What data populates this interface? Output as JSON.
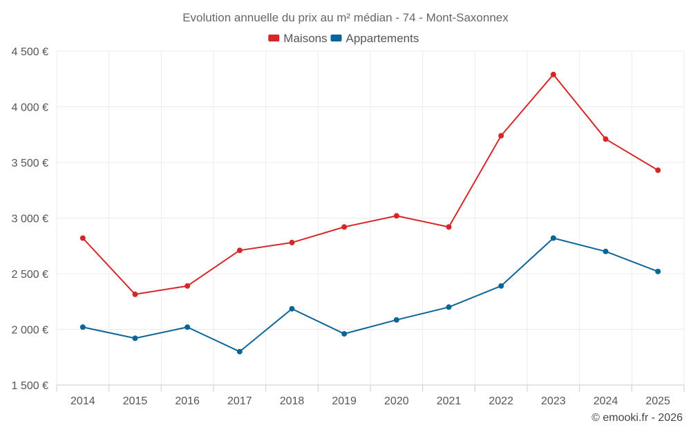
{
  "chart_data": {
    "type": "line",
    "title": "Evolution annuelle du prix au m² médian - 74 - Mont-Saxonnex",
    "categories": [
      "2014",
      "2015",
      "2016",
      "2017",
      "2018",
      "2019",
      "2020",
      "2021",
      "2022",
      "2023",
      "2024",
      "2025"
    ],
    "series": [
      {
        "name": "Maisons",
        "color": "#d62728",
        "values": [
          2820,
          2315,
          2390,
          2710,
          2780,
          2920,
          3020,
          2920,
          3740,
          4290,
          3710,
          3430
        ]
      },
      {
        "name": "Appartements",
        "color": "#0b6496",
        "values": [
          2020,
          1920,
          2020,
          1800,
          2185,
          1960,
          2085,
          2200,
          2390,
          2820,
          2700,
          2520
        ]
      }
    ],
    "yticks": [
      1500,
      2000,
      2500,
      3000,
      3500,
      4000,
      4500
    ],
    "ytick_labels": [
      "1 500 €",
      "2 000 €",
      "2 500 €",
      "3 000 €",
      "3 500 €",
      "4 000 €",
      "4 500 €"
    ],
    "ylim": [
      1500,
      4500
    ],
    "xlabel": "",
    "ylabel": "",
    "grid": true,
    "legend_position": "top-center"
  },
  "credit": "© emooki.fr - 2026"
}
